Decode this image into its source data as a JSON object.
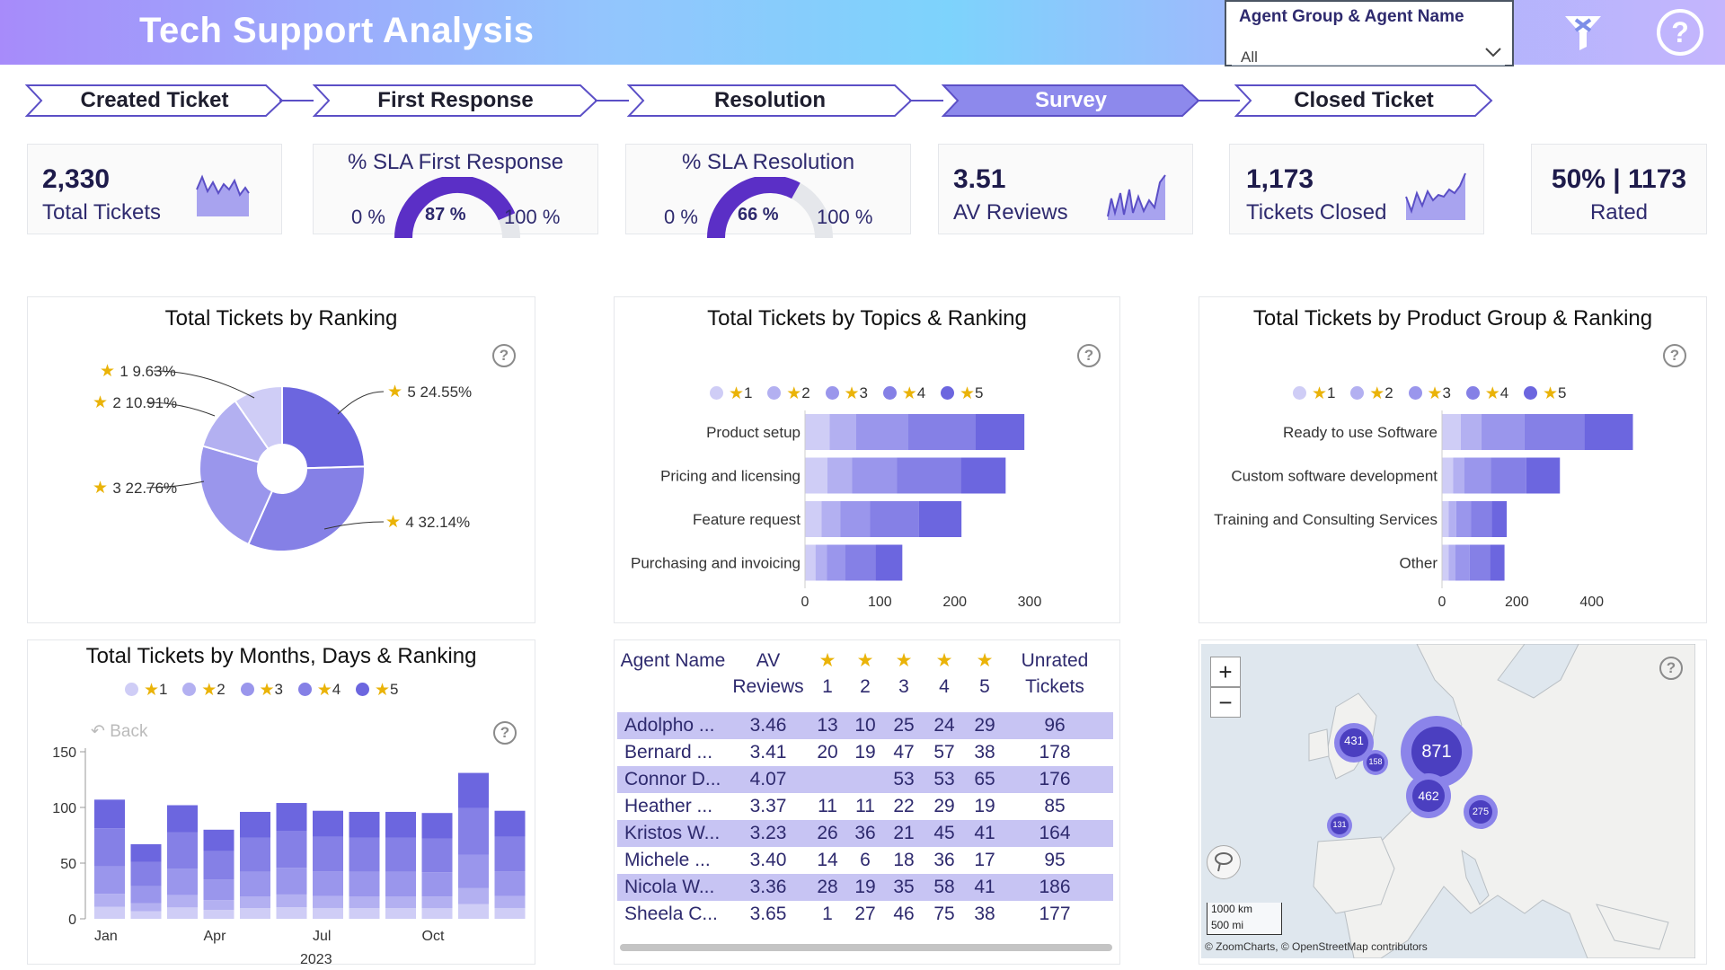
{
  "header": {
    "title": "Tech Support Analysis",
    "filter_label": "Agent Group & Agent Name",
    "filter_value": "All"
  },
  "steps": [
    {
      "label": "Created Ticket",
      "active": false
    },
    {
      "label": "First Response",
      "active": false
    },
    {
      "label": "Resolution",
      "active": false
    },
    {
      "label": "Survey",
      "active": true
    },
    {
      "label": "Closed Ticket",
      "active": false
    }
  ],
  "kpis": {
    "total_tickets": {
      "value": "2,330",
      "label": "Total Tickets"
    },
    "sla_first": {
      "title": "% SLA First Response",
      "min": "0 %",
      "value": "87 %",
      "max": "100 %",
      "pct": 87
    },
    "sla_resolution": {
      "title": "% SLA Resolution",
      "min": "0 %",
      "value": "66 %",
      "max": "100 %",
      "pct": 66
    },
    "av_reviews": {
      "value": "3.51",
      "label": "AV Reviews"
    },
    "closed": {
      "value": "1,173",
      "label": "Tickets Closed"
    },
    "rated": {
      "value": "50% | 1173",
      "label": "Rated"
    }
  },
  "colors": {
    "r1": "#cfcdf6",
    "r2": "#b3b0f1",
    "r3": "#9a96ec",
    "r4": "#8580e6",
    "r5": "#6c66df",
    "accent": "#5b4fc6",
    "star": "#eab308"
  },
  "legend": [
    {
      "label": "1"
    },
    {
      "label": "2"
    },
    {
      "label": "3"
    },
    {
      "label": "4"
    },
    {
      "label": "5"
    }
  ],
  "ranking_panel": {
    "title": "Total Tickets by Ranking",
    "labels": [
      "1 9.63%",
      "2 10.91%",
      "3 22.76%",
      "4 32.14%",
      "5 24.55%"
    ]
  },
  "topics_panel": {
    "title": "Total Tickets by Topics & Ranking",
    "ticks": [
      "0",
      "100",
      "200",
      "300"
    ]
  },
  "product_panel": {
    "title": "Total Tickets by Product Group & Ranking",
    "ticks": [
      "0",
      "200",
      "400"
    ]
  },
  "months_panel": {
    "title": "Total Tickets by Months, Days & Ranking",
    "back_label": "Back",
    "year": "2023",
    "y_ticks": [
      "150",
      "100",
      "50",
      "0"
    ],
    "x_labels": [
      "Jan",
      "Apr",
      "Jul",
      "Oct"
    ]
  },
  "chart_data": [
    {
      "type": "pie",
      "title": "Total Tickets by Ranking",
      "categories": [
        "1",
        "2",
        "3",
        "4",
        "5"
      ],
      "values": [
        9.63,
        10.91,
        22.76,
        32.14,
        24.55
      ]
    },
    {
      "type": "bar",
      "title": "Total Tickets by Topics & Ranking",
      "categories": [
        "Product setup",
        "Pricing and licensing",
        "Feature request",
        "Purchasing and invoicing"
      ],
      "series": [
        {
          "name": "1",
          "values": [
            33,
            30,
            22,
            14
          ]
        },
        {
          "name": "2",
          "values": [
            35,
            33,
            25,
            15
          ]
        },
        {
          "name": "3",
          "values": [
            70,
            60,
            40,
            25
          ]
        },
        {
          "name": "4",
          "values": [
            90,
            85,
            65,
            40
          ]
        },
        {
          "name": "5",
          "values": [
            65,
            60,
            57,
            36
          ]
        }
      ],
      "xlim": [
        0,
        300
      ]
    },
    {
      "type": "bar",
      "title": "Total Tickets by Product Group & Ranking",
      "categories": [
        "Ready to use Software",
        "Custom software development",
        "Training and Consulting Services",
        "Other"
      ],
      "series": [
        {
          "name": "1",
          "values": [
            50,
            30,
            18,
            18
          ]
        },
        {
          "name": "2",
          "values": [
            55,
            30,
            20,
            18
          ]
        },
        {
          "name": "3",
          "values": [
            115,
            70,
            40,
            38
          ]
        },
        {
          "name": "4",
          "values": [
            160,
            95,
            55,
            54
          ]
        },
        {
          "name": "5",
          "values": [
            130,
            90,
            40,
            39
          ]
        }
      ],
      "xlim": [
        0,
        600
      ]
    },
    {
      "type": "bar",
      "stacked": true,
      "title": "Total Tickets by Months, Days & Ranking",
      "categories": [
        "Jan",
        "Feb",
        "Mar",
        "Apr",
        "May",
        "Jun",
        "Jul",
        "Aug",
        "Sep",
        "Oct",
        "Nov",
        "Dec"
      ],
      "totals": [
        107,
        67,
        102,
        80,
        96,
        104,
        97,
        96,
        96,
        95,
        131,
        97
      ],
      "series_share": [
        {
          "name": "1",
          "share": 0.1
        },
        {
          "name": "2",
          "share": 0.11
        },
        {
          "name": "3",
          "share": 0.23
        },
        {
          "name": "4",
          "share": 0.32
        },
        {
          "name": "5",
          "share": 0.24
        }
      ],
      "ylim": [
        0,
        150
      ]
    }
  ],
  "agent_table": {
    "headers": {
      "agent": "Agent Name",
      "av": "AV Reviews",
      "r1": "1",
      "r2": "2",
      "r3": "3",
      "r4": "4",
      "r5": "5",
      "unrated": "Unrated Tickets"
    },
    "rows": [
      {
        "name": "Adolpho ...",
        "av": "3.46",
        "r1": "13",
        "r2": "10",
        "r3": "25",
        "r4": "24",
        "r5": "29",
        "unrated": "96"
      },
      {
        "name": "Bernard ...",
        "av": "3.41",
        "r1": "20",
        "r2": "19",
        "r3": "47",
        "r4": "57",
        "r5": "38",
        "unrated": "178"
      },
      {
        "name": "Connor D...",
        "av": "4.07",
        "r1": "",
        "r2": "",
        "r3": "53",
        "r4": "53",
        "r5": "65",
        "unrated": "176"
      },
      {
        "name": "Heather ...",
        "av": "3.37",
        "r1": "11",
        "r2": "11",
        "r3": "22",
        "r4": "29",
        "r5": "19",
        "unrated": "85"
      },
      {
        "name": "Kristos W...",
        "av": "3.23",
        "r1": "26",
        "r2": "36",
        "r3": "21",
        "r4": "45",
        "r5": "41",
        "unrated": "164"
      },
      {
        "name": "Michele ...",
        "av": "3.40",
        "r1": "14",
        "r2": "6",
        "r3": "18",
        "r4": "36",
        "r5": "17",
        "unrated": "95"
      },
      {
        "name": "Nicola W...",
        "av": "3.36",
        "r1": "28",
        "r2": "19",
        "r3": "35",
        "r4": "58",
        "r5": "41",
        "unrated": "186"
      },
      {
        "name": "Sheela C...",
        "av": "3.65",
        "r1": "1",
        "r2": "27",
        "r3": "46",
        "r4": "75",
        "r5": "38",
        "unrated": "177"
      }
    ]
  },
  "map": {
    "clusters": [
      "431",
      "871",
      "158",
      "462",
      "275",
      "131"
    ],
    "scale_km": "1000 km",
    "scale_mi": "500 mi",
    "attribution": "© ZoomCharts, © OpenStreetMap contributors"
  }
}
